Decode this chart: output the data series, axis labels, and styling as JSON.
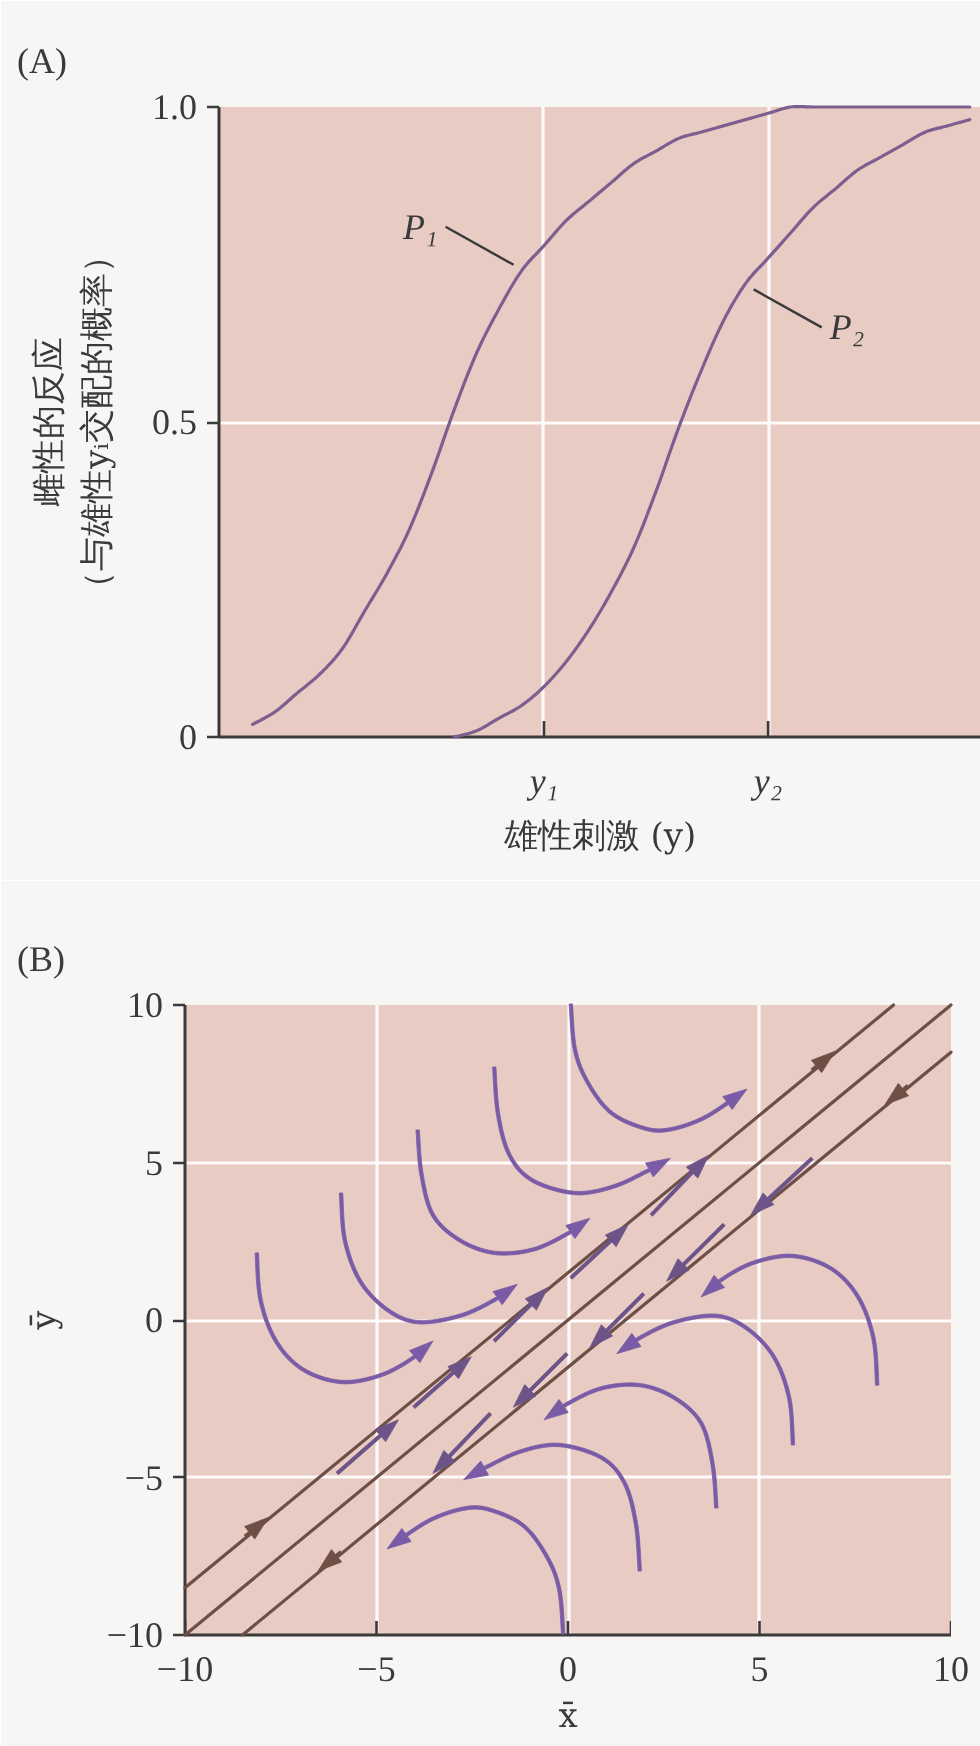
{
  "chart_data": [
    {
      "type": "line",
      "title": "(A)",
      "xlabel": "雄性刺激 (y)",
      "ylabel": "雌性的反应（与雄性yᵢ交配的概率）",
      "categories": [
        null,
        null,
        null,
        null,
        null,
        null,
        null,
        null,
        null,
        null,
        null,
        null,
        null,
        null,
        "y₁",
        null,
        null,
        null,
        null,
        null,
        null,
        null,
        null,
        null,
        "y₂",
        null,
        null,
        null,
        null,
        null,
        null,
        null,
        null,
        null
      ],
      "ylim": [
        0,
        1
      ],
      "yticks": [
        0,
        0.5,
        {
          "value": 1,
          "label": "1.0"
        }
      ],
      "grid": true,
      "series": [
        {
          "name": "P₁",
          "color": "#7d5f8f",
          "values": [
            null,
            0.02,
            0.04,
            0.07,
            0.1,
            0.14,
            0.2,
            0.26,
            0.33,
            0.42,
            0.52,
            0.61,
            0.68,
            0.74,
            0.78,
            0.82,
            0.85,
            0.88,
            0.91,
            0.93,
            0.95,
            0.96,
            0.97,
            0.98,
            0.99,
            1.0,
            1.0,
            1.0,
            1.0,
            1.0,
            1.0,
            1.0,
            1.0,
            1.0
          ]
        },
        {
          "name": "P₂",
          "color": "#7d5f8f",
          "values": [
            null,
            null,
            null,
            null,
            null,
            null,
            null,
            null,
            null,
            null,
            0.0,
            0.01,
            0.03,
            0.05,
            0.08,
            0.12,
            0.17,
            0.23,
            0.3,
            0.39,
            0.49,
            0.58,
            0.66,
            0.72,
            0.76,
            0.8,
            0.84,
            0.87,
            0.9,
            0.92,
            0.94,
            0.96,
            0.97,
            0.98
          ]
        }
      ]
    },
    {
      "type": "line",
      "title": "(B)",
      "xlabel": "x̄",
      "ylabel": "ȳ",
      "xlim": [
        -10,
        10
      ],
      "ylim": [
        -10,
        10
      ],
      "xticks": [
        {
          "value": -10,
          "label": "−10"
        },
        {
          "value": -5,
          "label": "−5"
        },
        0,
        5,
        10
      ],
      "yticks": [
        {
          "value": -10,
          "label": "−10"
        },
        {
          "value": -5,
          "label": "−5"
        },
        0,
        5,
        10
      ],
      "grid": true,
      "series": [
        {
          "color": "#6e4e45",
          "x": [
            -10,
            8.5
          ],
          "values": [
            -8.5,
            10
          ]
        },
        {
          "color": "#6e4e45",
          "x": [
            -10,
            10
          ],
          "values": [
            -10,
            10
          ]
        },
        {
          "color": "#6e4e45",
          "x": [
            10,
            -8.5
          ],
          "values": [
            8.5,
            -10
          ]
        }
      ]
    }
  ]
}
